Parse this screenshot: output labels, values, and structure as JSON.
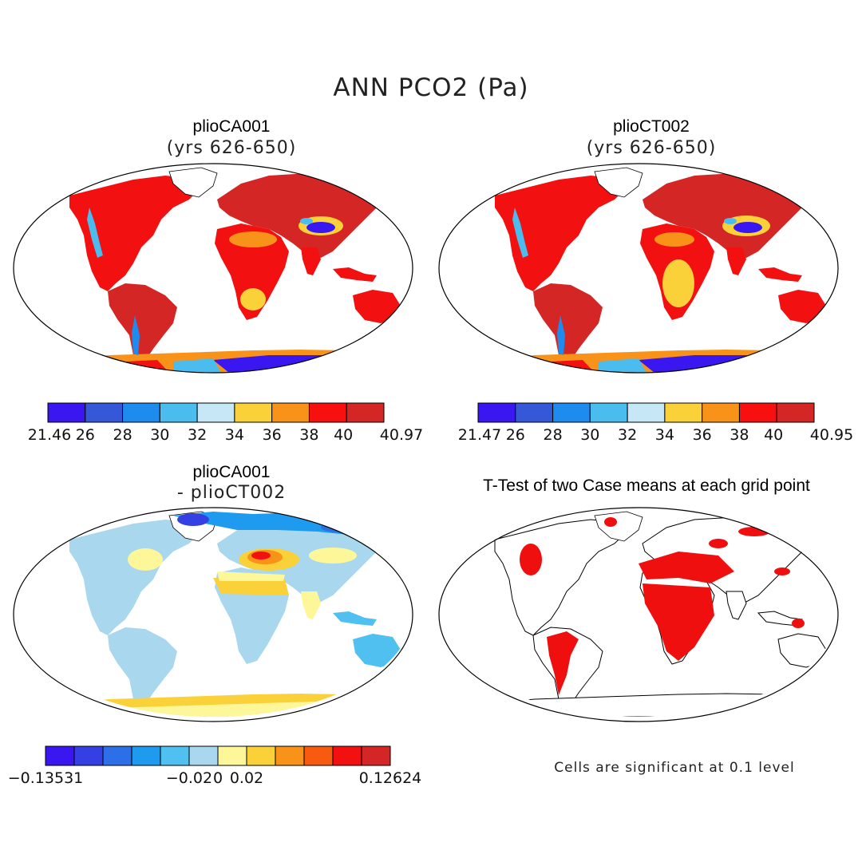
{
  "title": "ANN PCO2 (Pa)",
  "panels": [
    {
      "id": "a",
      "case_name": "plioCA001",
      "subtitle": "(yrs 626-650)",
      "palette": "abs"
    },
    {
      "id": "b",
      "case_name": "plioCT002",
      "subtitle": "(yrs 626-650)",
      "palette": "abs"
    },
    {
      "id": "c",
      "case_name": "plioCA001",
      "subtitle": "- plioCT002",
      "palette": "diff"
    },
    {
      "id": "d",
      "title": "T-Test of two Case means at each grid point",
      "palette": "sig"
    }
  ],
  "colorbars": [
    {
      "id": "cb_a",
      "colors": [
        "#3a16f0",
        "#3558d8",
        "#1e8cee",
        "#4bbcee",
        "#c6e8f6",
        "#fbd13a",
        "#f99218",
        "#f80f0f",
        "#d52626"
      ],
      "labels": [
        "21.46",
        "26",
        "28",
        "30",
        "32",
        "34",
        "36",
        "38",
        "40",
        "40.97"
      ]
    },
    {
      "id": "cb_b",
      "colors": [
        "#3a16f0",
        "#3558d8",
        "#1e8cee",
        "#4bbcee",
        "#c6e8f6",
        "#fbd13a",
        "#f99218",
        "#f80f0f",
        "#d52626"
      ],
      "labels": [
        "21.47",
        "26",
        "28",
        "30",
        "32",
        "34",
        "36",
        "38",
        "40",
        "40.95"
      ]
    },
    {
      "id": "cb_c",
      "colors": [
        "#3a16f0",
        "#3540e4",
        "#2c6fe8",
        "#1e9aee",
        "#4fc0f0",
        "#a9d8ee",
        "#fdf79a",
        "#fbd13a",
        "#f99218",
        "#f85a10",
        "#f21010",
        "#d52626"
      ],
      "labels": [
        "-0.13531",
        "-0.02",
        "0",
        "0.02",
        "0.12624"
      ]
    }
  ],
  "note": "Cells are significant at 0.1 level",
  "colors": {
    "significant": "#f00f0f",
    "coast": "#000000"
  },
  "legend_values": {
    "cb_a": {
      "min": 21.46,
      "max": 40.97,
      "ticks": [
        26,
        28,
        30,
        32,
        34,
        36,
        38,
        40
      ]
    },
    "cb_b": {
      "min": 21.47,
      "max": 40.95,
      "ticks": [
        26,
        28,
        30,
        32,
        34,
        36,
        38,
        40
      ]
    },
    "cb_c": {
      "min": -0.13531,
      "max": 0.12624,
      "ticks": [
        -0.02,
        0,
        0.02
      ]
    },
    "significance_level": 0.1
  }
}
